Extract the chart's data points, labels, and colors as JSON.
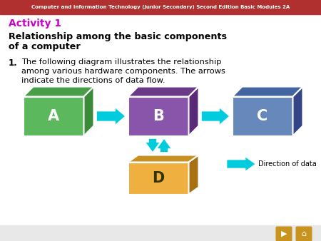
{
  "header_text": "Computer and Information Technology (Junior Secondary) Second Edition Basic Modules 2A",
  "header_bg": "#b03030",
  "header_text_color": "#ffffff",
  "activity_text": "Activity 1",
  "activity_color": "#cc00cc",
  "title_line1": "Relationship among the basic components",
  "title_line2": "of a computer",
  "body_num": "1.",
  "body_line1": "The following diagram illustrates the relationship",
  "body_line2": "among various hardware components. The arrows",
  "body_line3": "indicate the directions of data flow.",
  "bg_color": "#e8e8e8",
  "white_bg": "#ffffff",
  "box_A_face": "#5cb85c",
  "box_A_top": "#4a9e4a",
  "box_A_side": "#3a8a3a",
  "box_A_label": "A",
  "box_B_face": "#8855aa",
  "box_B_top": "#6a3a88",
  "box_B_side": "#5a2a78",
  "box_B_label": "B",
  "box_C_face": "#6688bb",
  "box_C_top": "#4466a0",
  "box_C_side": "#334488",
  "box_C_label": "C",
  "box_D_face": "#f0b040",
  "box_D_top": "#c89020",
  "box_D_side": "#a87010",
  "box_D_label": "D",
  "arrow_color": "#00ccdd",
  "legend_text": "Direction of data",
  "nav_color": "#c8941e"
}
